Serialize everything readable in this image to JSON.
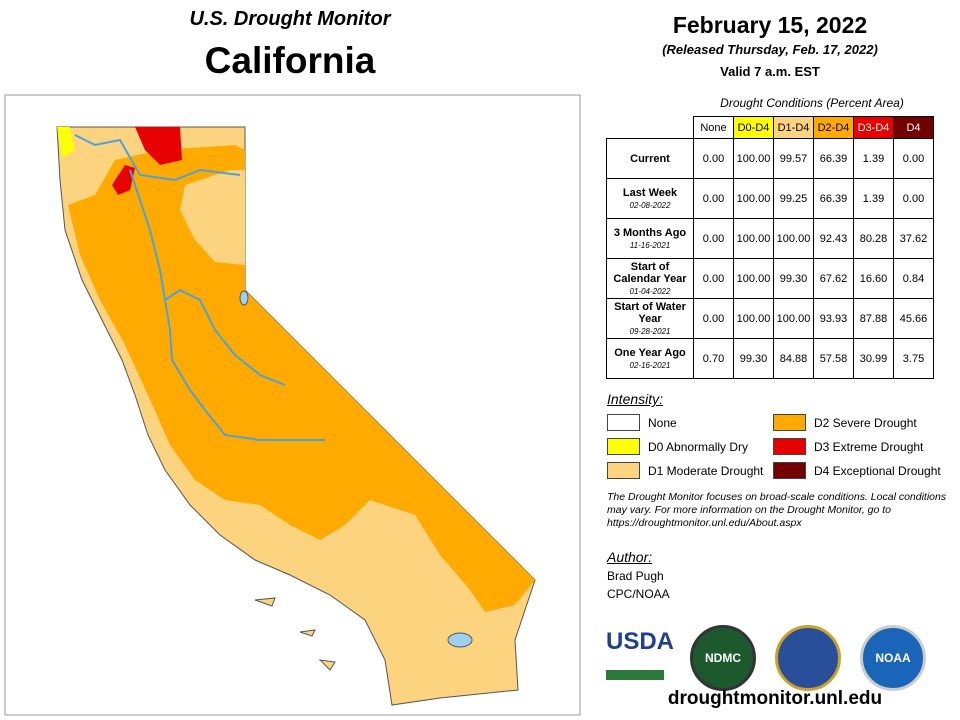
{
  "header": {
    "title": "U.S. Drought Monitor",
    "state": "California"
  },
  "date": {
    "date": "February 15, 2022",
    "released": "(Released Thursday, Feb. 17, 2022)",
    "valid": "Valid 7 a.m. EST"
  },
  "table": {
    "caption": "Drought Conditions (Percent Area)",
    "columns": [
      {
        "label": "None",
        "color": "#ffffff"
      },
      {
        "label": "D0-D4",
        "color": "#ffff00"
      },
      {
        "label": "D1-D4",
        "color": "#fcd37f"
      },
      {
        "label": "D2-D4",
        "color": "#ffaa00"
      },
      {
        "label": "D3-D4",
        "color": "#e60000"
      },
      {
        "label": "D4",
        "color": "#730000"
      }
    ],
    "rows": [
      {
        "label": "Current",
        "values": [
          "0.00",
          "100.00",
          "99.57",
          "66.39",
          "1.39",
          "0.00"
        ]
      },
      {
        "label": "Last Week",
        "date": "02-08-2022",
        "values": [
          "0.00",
          "100.00",
          "99.25",
          "66.39",
          "1.39",
          "0.00"
        ]
      },
      {
        "label": "3 Months Ago",
        "date": "11-16-2021",
        "values": [
          "0.00",
          "100.00",
          "100.00",
          "92.43",
          "80.28",
          "37.62"
        ]
      },
      {
        "label": "Start of Calendar Year",
        "date": "01-04-2022",
        "values": [
          "0.00",
          "100.00",
          "99.30",
          "67.62",
          "16.60",
          "0.84"
        ]
      },
      {
        "label": "Start of Water Year",
        "date": "09-28-2021",
        "values": [
          "0.00",
          "100.00",
          "100.00",
          "93.93",
          "87.88",
          "45.66"
        ]
      },
      {
        "label": "One Year Ago",
        "date": "02-16-2021",
        "values": [
          "0.70",
          "99.30",
          "84.88",
          "57.58",
          "30.99",
          "3.75"
        ]
      }
    ]
  },
  "legend": {
    "title": "Intensity:",
    "items": [
      {
        "label": "None",
        "color": "#ffffff"
      },
      {
        "label": "D0 Abnormally Dry",
        "color": "#ffff00"
      },
      {
        "label": "D1 Moderate Drought",
        "color": "#fcd37f"
      },
      {
        "label": "D2 Severe Drought",
        "color": "#ffaa00"
      },
      {
        "label": "D3 Extreme Drought",
        "color": "#e60000"
      },
      {
        "label": "D4 Exceptional Drought",
        "color": "#730000"
      }
    ]
  },
  "note": "The Drought Monitor focuses on broad-scale conditions. Local conditions may vary. For more information on the Drought Monitor, go to https://droughtmonitor.unl.edu/About.aspx",
  "author": {
    "title": "Author:",
    "name": "Brad Pugh",
    "org": "CPC/NOAA"
  },
  "logos": [
    "USDA",
    "NDMC",
    "NOAA"
  ],
  "url": "droughtmonitor.unl.edu"
}
